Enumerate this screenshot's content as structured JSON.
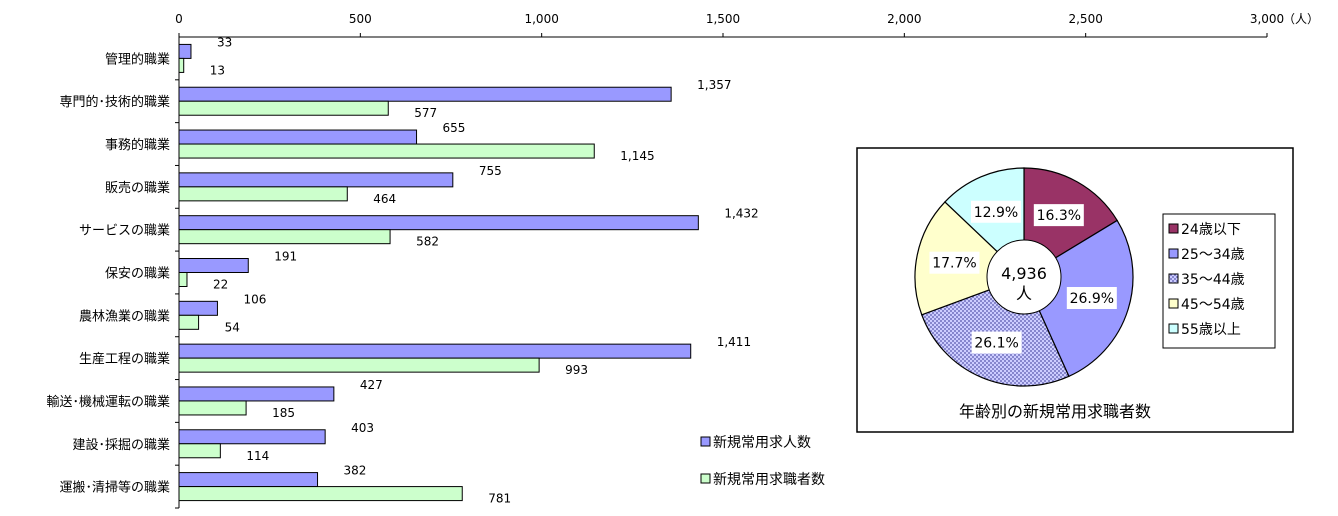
{
  "chart_data": [
    {
      "type": "bar",
      "orientation": "horizontal",
      "unit": "（人）",
      "xlim": [
        0,
        3000
      ],
      "ticks": [
        "0",
        "500",
        "1,000",
        "1,500",
        "2,000",
        "2,500",
        "3,000"
      ],
      "categories": [
        "管理的職業",
        "専門的･技術的職業",
        "事務的職業",
        "販売の職業",
        "サービスの職業",
        "保安の職業",
        "農林漁業の職業",
        "生産工程の職業",
        "輸送･機械運転の職業",
        "建設･採掘の職業",
        "運搬･清掃等の職業"
      ],
      "series": [
        {
          "name": "新規常用求人数",
          "color": "#9999ff",
          "values": [
            33,
            1357,
            655,
            755,
            1432,
            191,
            106,
            1411,
            427,
            403,
            382
          ],
          "labels": [
            "33",
            "1,357",
            "655",
            "755",
            "1,432",
            "191",
            "106",
            "1,411",
            "427",
            "403",
            "382"
          ]
        },
        {
          "name": "新規常用求職者数",
          "color": "#ccffcc",
          "values": [
            13,
            577,
            1145,
            464,
            582,
            22,
            54,
            993,
            185,
            114,
            781
          ],
          "labels": [
            "13",
            "577",
            "1,145",
            "464",
            "582",
            "22",
            "54",
            "993",
            "185",
            "114",
            "781"
          ]
        }
      ],
      "legend": "bottom-right",
      "grid": false
    },
    {
      "type": "pie",
      "subtype": "donut",
      "title": "年齢別の新規常用求職者数",
      "center_label": [
        "4,936",
        "人"
      ],
      "slices": [
        {
          "name": "24歳以下",
          "value": 16.3,
          "label": "16.3%",
          "color": "#993366"
        },
        {
          "name": "25～34歳",
          "value": 26.9,
          "label": "26.9%",
          "color": "#9999ff"
        },
        {
          "name": "35～44歳",
          "value": 26.1,
          "label": "26.1%",
          "color": "#ccccff",
          "pattern": "dotted"
        },
        {
          "name": "45～54歳",
          "value": 17.7,
          "label": "17.7%",
          "color": "#ffffcc"
        },
        {
          "name": "55歳以上",
          "value": 12.9,
          "label": "12.9%",
          "color": "#ccffff"
        }
      ],
      "legend": "right"
    }
  ]
}
